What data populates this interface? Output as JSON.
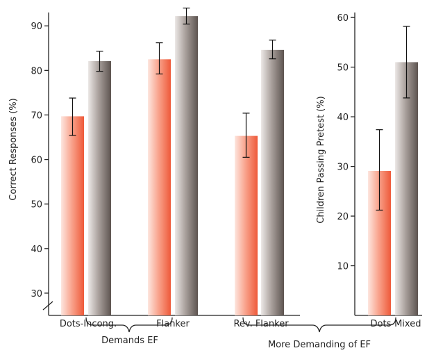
{
  "chart_data": [
    {
      "type": "bar",
      "ylabel": "Correct Responses (%)",
      "ylim": [
        25,
        93
      ],
      "yticks": [
        30,
        40,
        50,
        60,
        70,
        80,
        90
      ],
      "axis_break": true,
      "categories": [
        "Dots-Incong.",
        "Flanker",
        "Rev. Flanker"
      ],
      "series": [
        {
          "color": "#f26b4a",
          "values": [
            69.7,
            82.5,
            65.3
          ],
          "error": [
            [
              65.4,
              73.8
            ],
            [
              79.2,
              86.2
            ],
            [
              60.5,
              70.4
            ]
          ]
        },
        {
          "color": "#6e6460",
          "values": [
            82.1,
            92.2,
            84.6
          ],
          "error": [
            [
              79.8,
              84.3
            ],
            [
              90.4,
              94.0
            ],
            [
              82.6,
              86.8
            ]
          ]
        }
      ],
      "grid": false
    },
    {
      "type": "bar",
      "ylabel": "Children Passing Pretest (%)",
      "ylim": [
        0,
        61
      ],
      "yticks": [
        10,
        20,
        30,
        40,
        50,
        60
      ],
      "categories": [
        "Dots-Mixed"
      ],
      "series": [
        {
          "color": "#f26b4a",
          "values": [
            29.1
          ],
          "error": [
            [
              21.2,
              37.4
            ]
          ]
        },
        {
          "color": "#6e6460",
          "values": [
            51.0
          ],
          "error": [
            [
              43.8,
              58.2
            ]
          ]
        }
      ],
      "grid": false
    }
  ],
  "annotations": {
    "demands_ef": "Demands EF",
    "more_demanding": "More Demanding of EF"
  }
}
